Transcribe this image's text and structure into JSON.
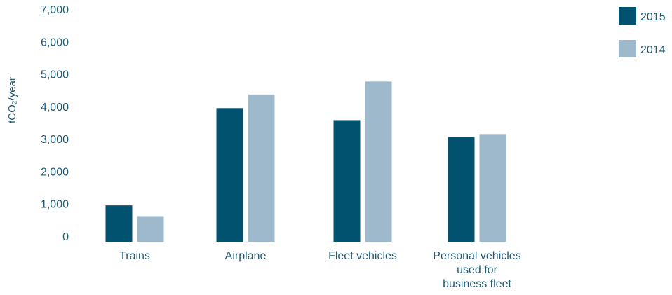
{
  "chart_data": {
    "type": "bar",
    "categories": [
      [
        "Trains"
      ],
      [
        "Airplane"
      ],
      [
        "Fleet vehicles"
      ],
      [
        "Personal vehicles",
        "used for",
        "business fleet"
      ]
    ],
    "series": [
      {
        "name": "2015",
        "color": "#00526f",
        "values": [
          1120,
          4120,
          3750,
          3230
        ]
      },
      {
        "name": "2014",
        "color": "#9fb9cc",
        "values": [
          790,
          4540,
          4940,
          3320
        ]
      }
    ],
    "ylabel": "tCO₂/year",
    "yticks": [
      "7,000",
      "6,000",
      "5,000",
      "4,000",
      "3,000",
      "2,000",
      "1,000",
      "0"
    ],
    "ylim": [
      0,
      7000
    ],
    "legend_position": "top-right",
    "grid": false
  }
}
